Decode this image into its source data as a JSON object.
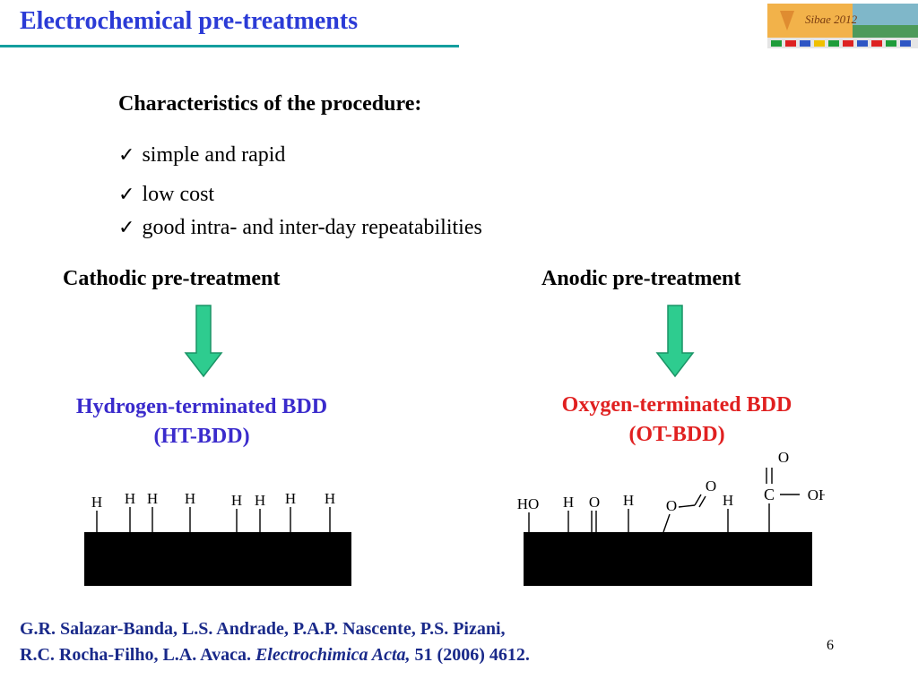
{
  "title": "Electrochemical  pre-treatments",
  "logo": {
    "text": "Sibae 2012"
  },
  "characteristics": {
    "heading": "Characteristics of the procedure:",
    "items": [
      "simple and rapid",
      "low cost",
      "good intra- and inter-day repeatabilities"
    ]
  },
  "cathodic": {
    "label": "Cathodic pre-treatment",
    "result_line1": "Hydrogen-terminated BDD",
    "result_line2": "(HT-BDD)",
    "atoms": [
      "H",
      "H",
      "H",
      "H",
      "H",
      "H",
      "H",
      "H"
    ]
  },
  "anodic": {
    "label": "Anodic pre-treatment",
    "result_line1": "Oxygen-terminated BDD",
    "result_line2": "(OT-BDD)",
    "groups": [
      "HO",
      "H",
      "O",
      "H",
      "O",
      "O",
      "H",
      "C",
      "O",
      "OH"
    ]
  },
  "reference": {
    "line1": "G.R. Salazar-Banda, L.S. Andrade, P.A.P. Nascente, P.S. Pizani,",
    "line2_plain": "R.C. Rocha-Filho, L.A. Avaca. ",
    "line2_journal": "Electrochimica Acta,",
    "line2_tail": " 51 (2006) 4612."
  },
  "page_number": "6",
  "colors": {
    "title": "#2b3bd6",
    "rule": "#149e9e",
    "hydrogen_text": "#3a2bcc",
    "oxygen_text": "#e02020",
    "arrow": "#2ecc8f",
    "reference": "#1a2a8a"
  }
}
